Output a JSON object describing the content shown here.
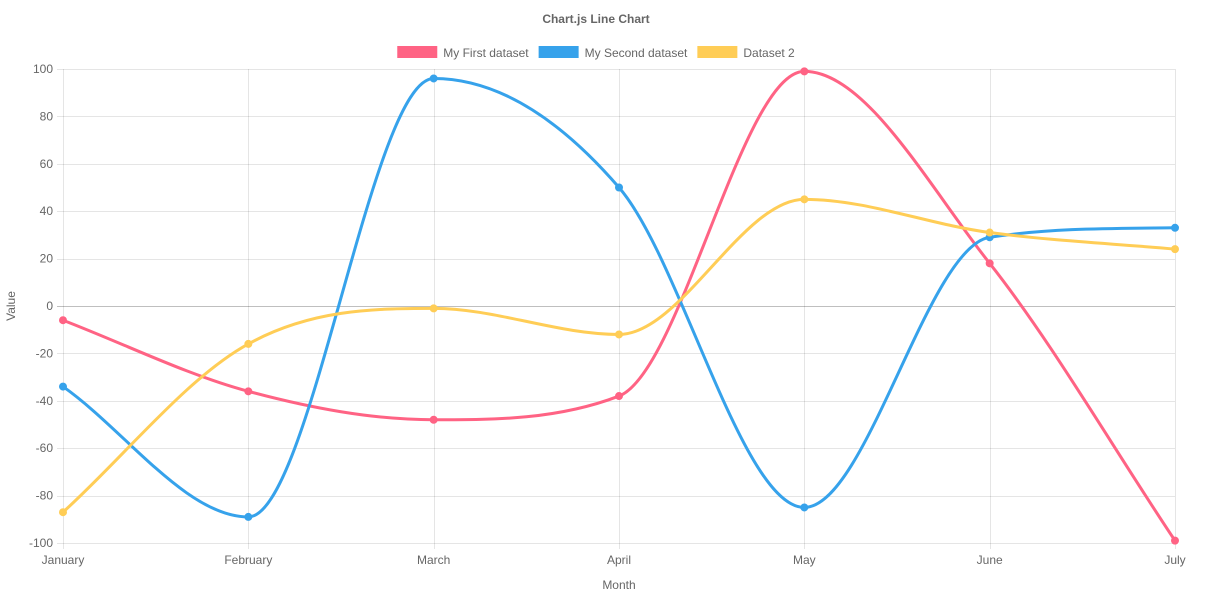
{
  "chart_data": {
    "type": "line",
    "title": "Chart.js Line Chart",
    "xlabel": "Month",
    "ylabel": "Value",
    "categories": [
      "January",
      "February",
      "March",
      "April",
      "May",
      "June",
      "July"
    ],
    "ylim": [
      -100,
      100
    ],
    "yticks": [
      "100",
      "80",
      "60",
      "40",
      "20",
      "0",
      "-20",
      "-40",
      "-60",
      "-80",
      "-100"
    ],
    "ytick_values": [
      100,
      80,
      60,
      40,
      20,
      0,
      -20,
      -40,
      -60,
      -80,
      -100
    ],
    "grid": true,
    "legend_position": "top",
    "series": [
      {
        "name": "My First dataset",
        "color": "#ff6384",
        "values": [
          -6,
          -36,
          -48,
          -38,
          99,
          18,
          -99
        ]
      },
      {
        "name": "My Second dataset",
        "color": "#36a2eb",
        "values": [
          -34,
          -89,
          96,
          50,
          -85,
          29,
          33
        ]
      },
      {
        "name": "Dataset 2",
        "color": "#ffcd56",
        "values": [
          -87,
          -16,
          -1,
          -12,
          45,
          31,
          24
        ]
      }
    ]
  }
}
